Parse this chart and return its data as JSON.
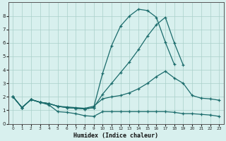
{
  "xlabel": "Humidex (Indice chaleur)",
  "bg_color": "#d8f0ee",
  "grid_color": "#aacfca",
  "line_color": "#1a6b6b",
  "xlim": [
    -0.5,
    23.5
  ],
  "ylim": [
    0,
    9
  ],
  "xticks": [
    0,
    1,
    2,
    3,
    4,
    5,
    6,
    7,
    8,
    9,
    10,
    11,
    12,
    13,
    14,
    15,
    16,
    17,
    18,
    19,
    20,
    21,
    22,
    23
  ],
  "yticks": [
    0,
    1,
    2,
    3,
    4,
    5,
    6,
    7,
    8
  ],
  "lines": [
    {
      "x": [
        0,
        1,
        2,
        3,
        4,
        5,
        6,
        7,
        8,
        9,
        10,
        11,
        12,
        13,
        14,
        15,
        16,
        17,
        18,
        19,
        20,
        21,
        22,
        23
      ],
      "y": [
        2.0,
        1.2,
        1.8,
        1.6,
        1.4,
        0.9,
        0.85,
        0.75,
        0.6,
        0.55,
        0.9,
        0.9,
        0.9,
        0.9,
        0.9,
        0.9,
        0.9,
        0.9,
        0.85,
        0.75,
        0.75,
        0.7,
        0.65,
        0.55
      ]
    },
    {
      "x": [
        0,
        1,
        2,
        3,
        4,
        5,
        6,
        7,
        8,
        9,
        10,
        11,
        12,
        13,
        14,
        15,
        16,
        17,
        18,
        19,
        20,
        21,
        22,
        23
      ],
      "y": [
        2.0,
        1.2,
        1.8,
        1.6,
        1.5,
        1.3,
        1.25,
        1.2,
        1.15,
        1.3,
        1.85,
        2.0,
        2.1,
        2.3,
        2.6,
        3.0,
        3.5,
        3.9,
        3.4,
        3.0,
        2.1,
        1.9,
        1.85,
        1.75
      ]
    },
    {
      "x": [
        0,
        1,
        2,
        3,
        4,
        5,
        6,
        7,
        8,
        9,
        10,
        11,
        12,
        13,
        14,
        15,
        16,
        17,
        18,
        19,
        20
      ],
      "y": [
        2.0,
        1.2,
        1.8,
        1.6,
        1.5,
        1.3,
        1.2,
        1.15,
        1.1,
        1.2,
        2.2,
        3.0,
        3.8,
        4.6,
        5.5,
        6.5,
        7.35,
        7.9,
        6.0,
        4.35,
        null
      ]
    },
    {
      "x": [
        0,
        1,
        2,
        3,
        4,
        5,
        6,
        7,
        8,
        9,
        10,
        11,
        12,
        13,
        14,
        15,
        16,
        17,
        18
      ],
      "y": [
        2.0,
        1.2,
        1.8,
        1.6,
        1.5,
        1.3,
        1.2,
        1.15,
        1.1,
        1.2,
        3.75,
        5.8,
        7.25,
        8.0,
        8.5,
        8.4,
        7.9,
        6.05,
        4.4
      ]
    }
  ]
}
